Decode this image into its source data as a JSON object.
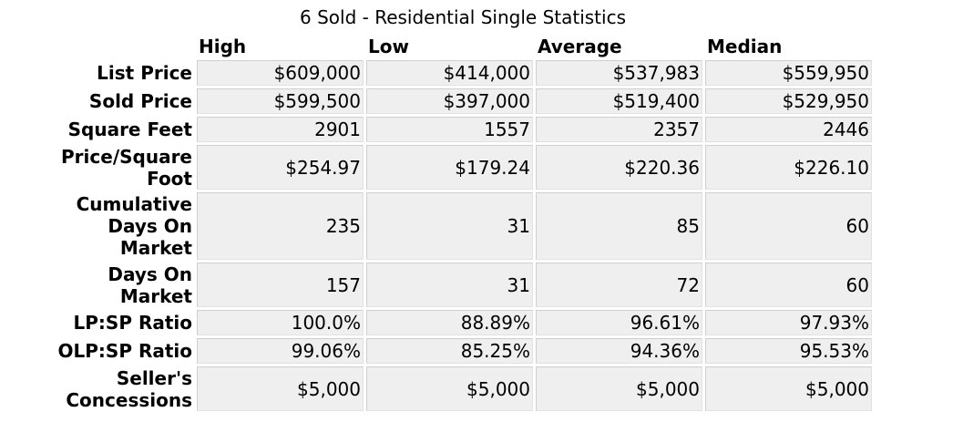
{
  "title": "6 Sold - Residential Single Statistics",
  "columns": [
    "High",
    "Low",
    "Average",
    "Median"
  ],
  "rows": [
    {
      "label": "List Price",
      "values": [
        "$609,000",
        "$414,000",
        "$537,983",
        "$559,950"
      ]
    },
    {
      "label": "Sold Price",
      "values": [
        "$599,500",
        "$397,000",
        "$519,400",
        "$529,950"
      ]
    },
    {
      "label": "Square Feet",
      "values": [
        "2901",
        "1557",
        "2357",
        "2446"
      ]
    },
    {
      "label": "Price/Square Foot",
      "values": [
        "$254.97",
        "$179.24",
        "$220.36",
        "$226.10"
      ]
    },
    {
      "label": "Cumulative Days On Market",
      "values": [
        "235",
        "31",
        "85",
        "60"
      ]
    },
    {
      "label": "Days On Market",
      "values": [
        "157",
        "31",
        "72",
        "60"
      ]
    },
    {
      "label": "LP:SP Ratio",
      "values": [
        "100.0%",
        "88.89%",
        "96.61%",
        "97.93%"
      ]
    },
    {
      "label": "OLP:SP Ratio",
      "values": [
        "99.06%",
        "85.25%",
        "94.36%",
        "95.53%"
      ]
    },
    {
      "label": "Seller's Concessions",
      "values": [
        "$5,000",
        "$5,000",
        "$5,000",
        "$5,000"
      ]
    }
  ]
}
